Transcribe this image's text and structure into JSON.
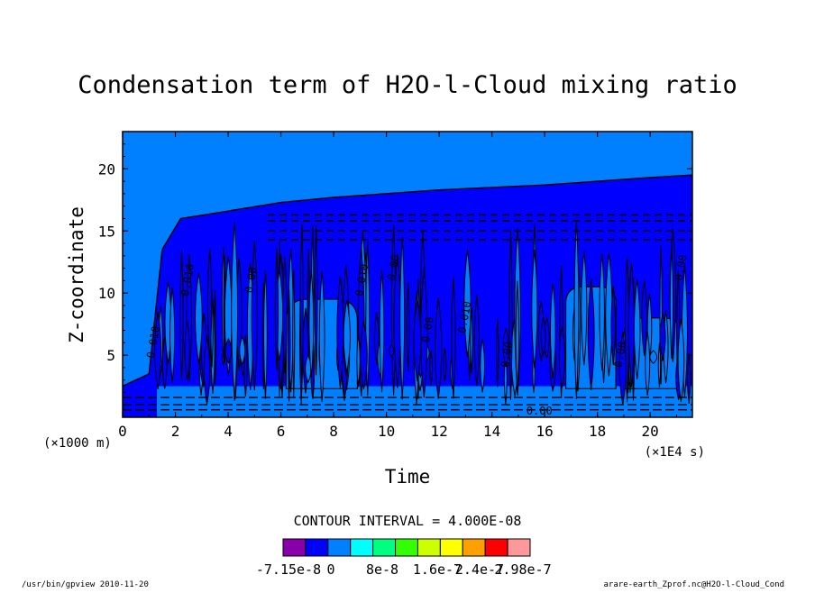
{
  "chart_data": {
    "type": "heatmap",
    "subtype": "filled-contour",
    "title": "Condensation term of H2O-l-Cloud mixing ratio",
    "xlabel": "Time",
    "ylabel": "Z-coordinate",
    "x_unit": "(×1E4 s)",
    "y_unit": "(×1000 m)",
    "xlim": [
      0,
      21.6
    ],
    "ylim": [
      0,
      23
    ],
    "x_ticks": [
      "0",
      "2",
      "4",
      "6",
      "8",
      "10",
      "12",
      "14",
      "16",
      "18",
      "20"
    ],
    "y_ticks": [
      "5",
      "10",
      "15",
      "20"
    ],
    "contour_interval": "CONTOUR INTERVAL = 4.000E-08",
    "contour_labels": [
      "0.00",
      "0.010",
      "0.00",
      "0.010",
      "0.010",
      "0.00",
      "0.00",
      "0.010",
      "0.00",
      "0.00",
      "0.00"
    ],
    "colorbar": {
      "colors": [
        "#8800aa",
        "#0000ff",
        "#0080ff",
        "#00ffff",
        "#00ff80",
        "#33ff00",
        "#ccff00",
        "#ffff00",
        "#ffa000",
        "#ff0000",
        "#ff9999"
      ],
      "labels": [
        "-7.15e-8",
        "0",
        "8e-8",
        "1.6e-7",
        "2.4e-7",
        "2.98e-7"
      ],
      "label_texts": [
        "-7.15e-8",
        "0",
        "8e-8",
        "1.6e-7",
        "2.4e-7",
        "2.98e-7"
      ]
    },
    "regions": {
      "background_value_color": "#0080ff",
      "negative_band_color": "#0000ff",
      "cloud_top_profile": [
        {
          "x": 0,
          "z": 2.5
        },
        {
          "x": 1,
          "z": 3.5
        },
        {
          "x": 1.5,
          "z": 13.5
        },
        {
          "x": 2.2,
          "z": 16.0
        },
        {
          "x": 4,
          "z": 16.6
        },
        {
          "x": 6,
          "z": 17.3
        },
        {
          "x": 8,
          "z": 17.7
        },
        {
          "x": 10,
          "z": 18.0
        },
        {
          "x": 12,
          "z": 18.3
        },
        {
          "x": 14,
          "z": 18.5
        },
        {
          "x": 16,
          "z": 18.7
        },
        {
          "x": 18,
          "z": 19.0
        },
        {
          "x": 20,
          "z": 19.3
        },
        {
          "x": 21.6,
          "z": 19.5
        }
      ],
      "clear_pockets": [
        {
          "x_start": 6.2,
          "x_end": 8.9,
          "z_top": 9.5
        },
        {
          "x_start": 16.8,
          "x_end": 18.7,
          "z_top": 10.5
        },
        {
          "x_start": 19.0,
          "x_end": 21.2,
          "z_top": 8.0
        }
      ]
    }
  },
  "footer": {
    "left": "/usr/bin/gpview  2010-11-20",
    "right": "arare-earth_Zprof.nc@H2O-l-Cloud_Cond"
  }
}
